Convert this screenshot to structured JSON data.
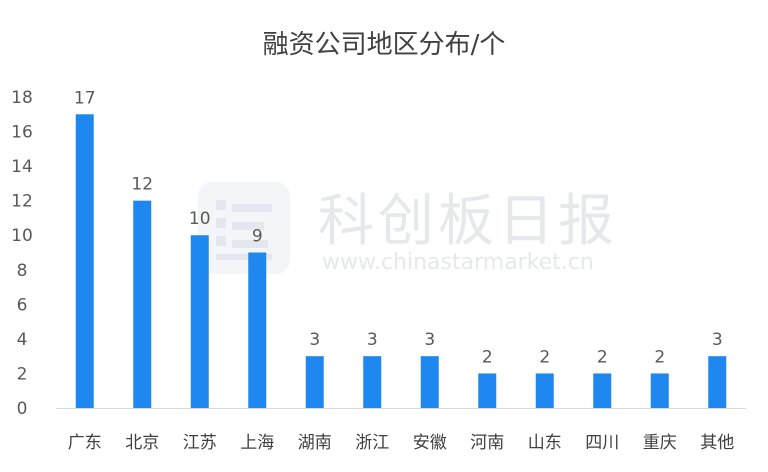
{
  "watermark": {
    "brand_cn": "科创板日报",
    "url": "www.chinastarmarket.cn"
  },
  "chart_data": {
    "type": "bar",
    "title": "融资公司地区分布/个",
    "categories": [
      "广东",
      "北京",
      "江苏",
      "上海",
      "湖南",
      "浙江",
      "安徽",
      "河南",
      "山东",
      "四川",
      "重庆",
      "其他"
    ],
    "values": [
      17,
      12,
      10,
      9,
      3,
      3,
      3,
      2,
      2,
      2,
      2,
      3
    ],
    "xlabel": "",
    "ylabel": "",
    "ylim": [
      0,
      18
    ],
    "yticks": [
      0,
      2,
      4,
      6,
      8,
      10,
      12,
      14,
      16,
      18
    ],
    "grid": false,
    "legend": "none",
    "bar_color": "#1e88f0",
    "data_labels": true
  }
}
